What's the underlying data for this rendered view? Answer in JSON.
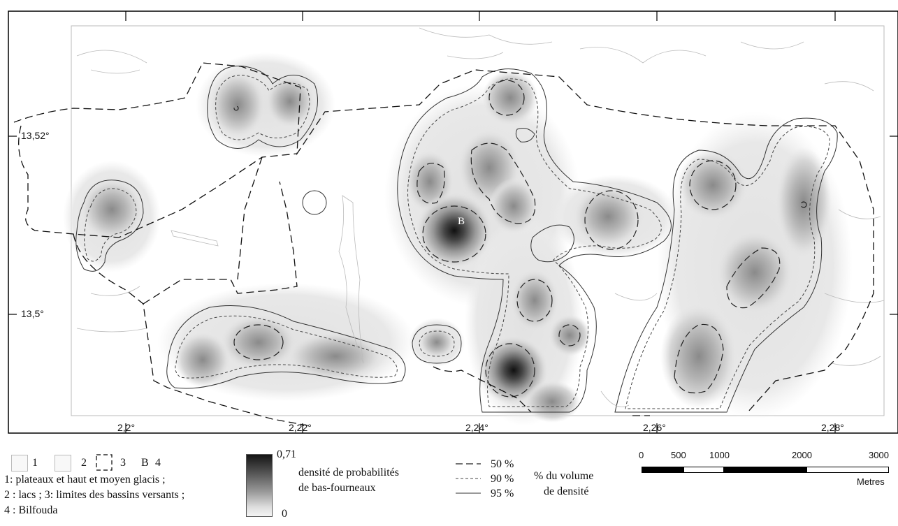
{
  "map": {
    "lat_labels": [
      "13,52°",
      "13,5°"
    ],
    "lon_labels": [
      "2,2°",
      "2,22°",
      "2,24°",
      "2,26°",
      "2,28°"
    ],
    "site_label": "B"
  },
  "legend": {
    "items": [
      {
        "number": "1"
      },
      {
        "number": "2"
      },
      {
        "number": "3"
      },
      {
        "symbol": "B",
        "number": "4"
      }
    ],
    "lines": [
      "1: plateaux et haut et moyen glacis ;",
      "2 : lacs ; 3: limites des bassins versants ;",
      "4 : Bilfouda"
    ],
    "density_max": "0,71",
    "density_min": "0",
    "density_title_line1": "densité de probabilités",
    "density_title_line2": "de bas-fourneaux",
    "contours": [
      {
        "label": "50 %",
        "style": "long-dash"
      },
      {
        "label": "90 %",
        "style": "short-dash"
      },
      {
        "label": "95 %",
        "style": "solid"
      }
    ],
    "contour_title_line1": "% du volume",
    "contour_title_line2": "de densité"
  },
  "scale": {
    "ticks": [
      "0",
      "500",
      "1000",
      "2000",
      "3000"
    ],
    "unit": "Metres"
  }
}
